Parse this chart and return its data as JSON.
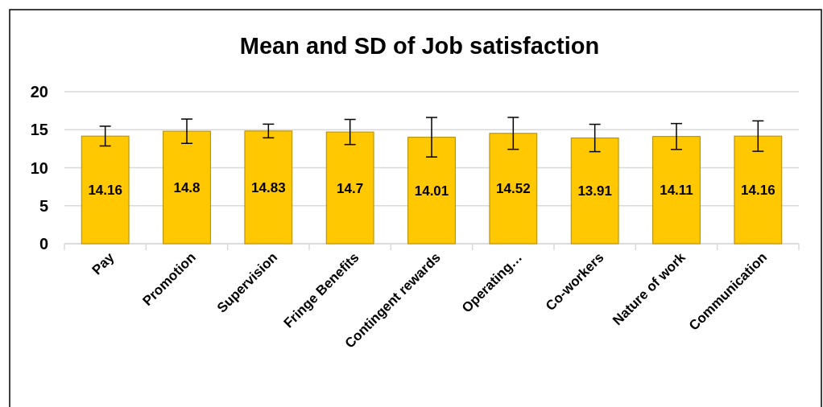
{
  "chart_data": {
    "type": "bar",
    "title": "Mean and SD of Job satisfaction",
    "categories": [
      "Pay",
      "Promotion",
      "Supervision",
      "Fringe Benefits",
      "Contingent rewards",
      "Operating…",
      "Co-workers",
      "Nature of work",
      "Communication"
    ],
    "values": [
      14.16,
      14.8,
      14.83,
      14.7,
      14.01,
      14.52,
      13.91,
      14.11,
      14.16
    ],
    "errors": [
      1.3,
      1.6,
      0.9,
      1.65,
      2.6,
      2.1,
      1.8,
      1.7,
      2.0
    ],
    "color": "#ffc800",
    "ylim": [
      0,
      20
    ],
    "yticks": [
      0,
      5,
      10,
      15,
      20
    ],
    "grid": "y",
    "data_labels": true
  }
}
